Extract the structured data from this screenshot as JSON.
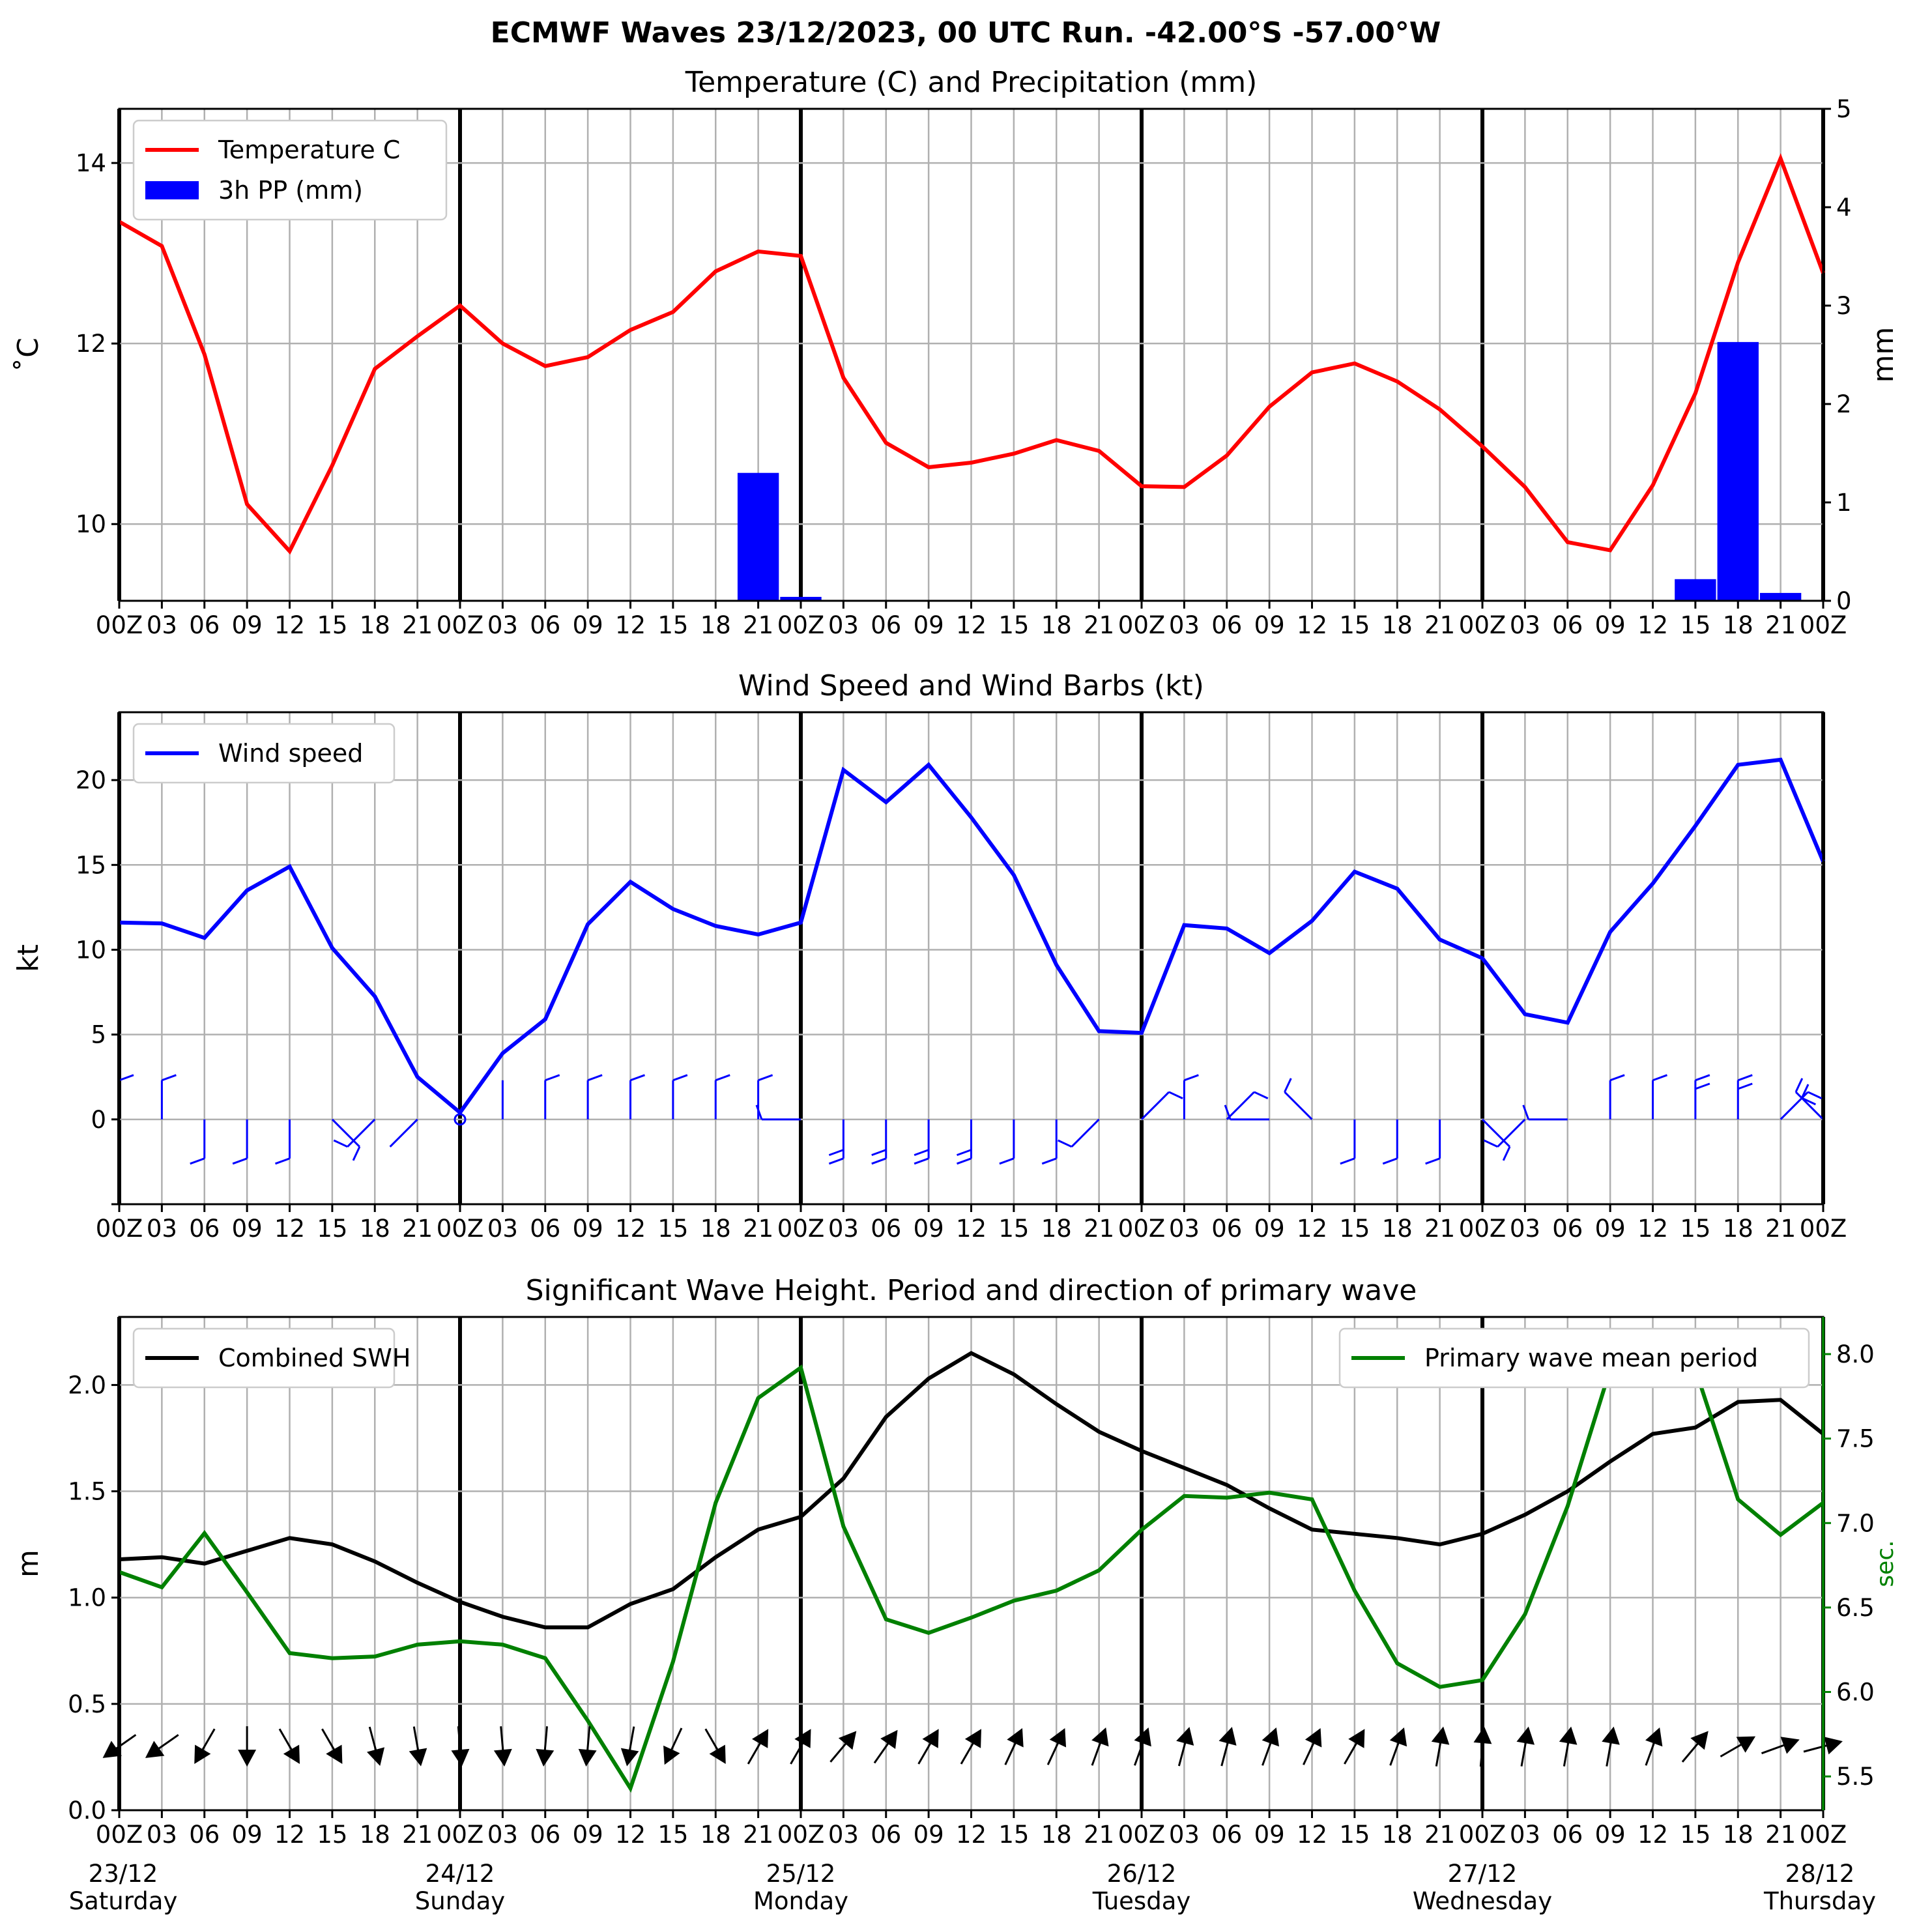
{
  "suptitle": "ECMWF Waves 23/12/2023, 00 UTC Run. -42.00°S -57.00°W",
  "hour_labels": [
    "00Z",
    "03",
    "06",
    "09",
    "12",
    "15",
    "18",
    "21",
    "00Z",
    "03",
    "06",
    "09",
    "12",
    "15",
    "18",
    "21",
    "00Z",
    "03",
    "06",
    "09",
    "12",
    "15",
    "18",
    "21",
    "00Z",
    "03",
    "06",
    "09",
    "12",
    "15",
    "18",
    "21",
    "00Z",
    "03",
    "06",
    "09",
    "12",
    "15",
    "18",
    "21",
    "00Z"
  ],
  "date_labels": [
    {
      "date": "23/12",
      "day": "Saturday"
    },
    {
      "date": "24/12",
      "day": "Sunday"
    },
    {
      "date": "25/12",
      "day": "Monday"
    },
    {
      "date": "26/12",
      "day": "Tuesday"
    },
    {
      "date": "27/12",
      "day": "Wednesday"
    },
    {
      "date": "28/12",
      "day": "Thursday"
    }
  ],
  "chart_data": [
    {
      "type": "line",
      "title": "Temperature (C) and Precipitation (mm)",
      "ylabel": "$^\\circ$C",
      "ylabel_display": "˚C",
      "ylabel_right": "mm",
      "ylim": [
        9.15,
        14.6
      ],
      "ylim_right": [
        0,
        5
      ],
      "yticks": [
        10,
        12,
        14
      ],
      "yticks_right": [
        0,
        1,
        2,
        3,
        4,
        5
      ],
      "x": [
        0,
        1,
        2,
        3,
        4,
        5,
        6,
        7,
        8,
        9,
        10,
        11,
        12,
        13,
        14,
        15,
        16,
        17,
        18,
        19,
        20,
        21,
        22,
        23,
        24,
        25,
        26,
        27,
        28,
        29,
        30,
        31,
        32,
        33,
        34,
        35,
        36,
        37,
        38,
        39,
        40
      ],
      "legend_position": "upper left",
      "series": [
        {
          "name": "Temperature C",
          "color": "#ff0000",
          "axis": "left",
          "values": [
            13.35,
            13.08,
            11.88,
            10.22,
            9.7,
            10.65,
            11.72,
            12.08,
            12.42,
            12.0,
            11.75,
            11.85,
            12.15,
            12.35,
            12.8,
            13.02,
            12.97,
            11.62,
            10.9,
            10.63,
            10.68,
            10.78,
            10.93,
            10.81,
            10.42,
            10.41,
            10.76,
            11.3,
            11.68,
            11.78,
            11.58,
            11.27,
            10.86,
            10.41,
            9.8,
            9.71,
            10.43,
            11.45,
            12.9,
            14.05,
            12.78
          ]
        },
        {
          "name": "3h PP (mm)",
          "color": "#0000ff",
          "axis": "right",
          "kind": "bar",
          "values": [
            0,
            0,
            0,
            0,
            0,
            0,
            0,
            0,
            0,
            0,
            0,
            0,
            0,
            0,
            0,
            1.3,
            0.04,
            0,
            0,
            0,
            0,
            0,
            0,
            0,
            0,
            0,
            0,
            0,
            0,
            0,
            0,
            0,
            0,
            0,
            0,
            0,
            0,
            0.22,
            2.63,
            0.08,
            0
          ]
        }
      ]
    },
    {
      "type": "line",
      "title": "Wind Speed and Wind Barbs (kt)",
      "ylabel": "kt",
      "ylim": [
        -5,
        24
      ],
      "yticks": [
        0,
        5,
        10,
        15,
        20
      ],
      "x": [
        0,
        1,
        2,
        3,
        4,
        5,
        6,
        7,
        8,
        9,
        10,
        11,
        12,
        13,
        14,
        15,
        16,
        17,
        18,
        19,
        20,
        21,
        22,
        23,
        24,
        25,
        26,
        27,
        28,
        29,
        30,
        31,
        32,
        33,
        34,
        35,
        36,
        37,
        38,
        39,
        40
      ],
      "legend_position": "upper left",
      "series": [
        {
          "name": "Wind speed",
          "color": "#0000ff",
          "values": [
            11.6,
            11.55,
            10.7,
            13.5,
            14.9,
            10.1,
            7.25,
            2.5,
            0.4,
            3.9,
            5.9,
            11.5,
            14.0,
            12.4,
            11.4,
            10.9,
            11.6,
            20.6,
            18.7,
            20.9,
            17.8,
            14.4,
            9.1,
            5.2,
            5.1,
            11.45,
            11.25,
            9.8,
            11.7,
            14.6,
            13.6,
            10.6,
            9.5,
            6.2,
            5.7,
            11.05,
            13.9,
            17.3,
            20.9,
            21.2,
            15.2
          ]
        }
      ],
      "barbs_direction": [
        "N",
        "N",
        "S",
        "S",
        "S",
        "SE",
        "SW",
        "SW",
        "C",
        "N",
        "N",
        "N",
        "N",
        "N",
        "N",
        "N",
        "W",
        "S",
        "S",
        "S",
        "S",
        "S",
        "S",
        "SW",
        "NE",
        "N",
        "NE",
        "W",
        "NW",
        "S",
        "S",
        "S",
        "SE",
        "SW",
        "W",
        "N",
        "N",
        "N",
        "N",
        "NE",
        "NW"
      ]
    },
    {
      "type": "line",
      "title": "Significant Wave Height. Period and direction of primary wave",
      "ylabel": "m",
      "ylabel_right": "sec.",
      "ylim": [
        0,
        2.32
      ],
      "ylim_right": [
        5.3,
        8.22
      ],
      "yticks": [
        0.0,
        0.5,
        1.0,
        1.5,
        2.0
      ],
      "yticks_right": [
        5.5,
        6.0,
        6.5,
        7.0,
        7.5,
        8.0
      ],
      "x": [
        0,
        1,
        2,
        3,
        4,
        5,
        6,
        7,
        8,
        9,
        10,
        11,
        12,
        13,
        14,
        15,
        16,
        17,
        18,
        19,
        20,
        21,
        22,
        23,
        24,
        25,
        26,
        27,
        28,
        29,
        30,
        31,
        32,
        33,
        34,
        35,
        36,
        37,
        38,
        39,
        40
      ],
      "series": [
        {
          "name": "Combined SWH",
          "color": "#000000",
          "axis": "left",
          "legend_position": "upper left",
          "values": [
            1.18,
            1.19,
            1.16,
            1.22,
            1.28,
            1.25,
            1.17,
            1.07,
            0.98,
            0.91,
            0.86,
            0.86,
            0.97,
            1.04,
            1.19,
            1.32,
            1.38,
            1.56,
            1.85,
            2.03,
            2.15,
            2.05,
            1.91,
            1.78,
            1.69,
            1.61,
            1.53,
            1.42,
            1.32,
            1.3,
            1.28,
            1.25,
            1.3,
            1.39,
            1.5,
            1.64,
            1.77,
            1.8,
            1.92,
            1.93,
            1.77
          ]
        },
        {
          "name": "Primary wave mean period",
          "color": "#008000",
          "axis": "right",
          "legend_position": "upper right",
          "values": [
            6.71,
            6.62,
            6.94,
            6.59,
            6.23,
            6.2,
            6.21,
            6.28,
            6.3,
            6.28,
            6.2,
            5.83,
            5.43,
            6.18,
            7.12,
            7.74,
            7.92,
            6.98,
            6.43,
            6.35,
            6.44,
            6.54,
            6.6,
            6.72,
            6.96,
            7.16,
            7.15,
            7.18,
            7.14,
            6.6,
            6.17,
            6.03,
            6.07,
            6.46,
            7.1,
            7.91,
            8.1,
            7.91,
            7.14,
            6.93,
            7.12
          ]
        }
      ],
      "arrow_direction_deg": [
        215,
        215,
        240,
        270,
        300,
        300,
        285,
        280,
        275,
        275,
        265,
        265,
        260,
        245,
        300,
        60,
        60,
        50,
        55,
        60,
        60,
        65,
        65,
        70,
        70,
        75,
        75,
        70,
        65,
        60,
        70,
        80,
        85,
        80,
        80,
        80,
        70,
        50,
        30,
        20,
        15
      ]
    }
  ]
}
